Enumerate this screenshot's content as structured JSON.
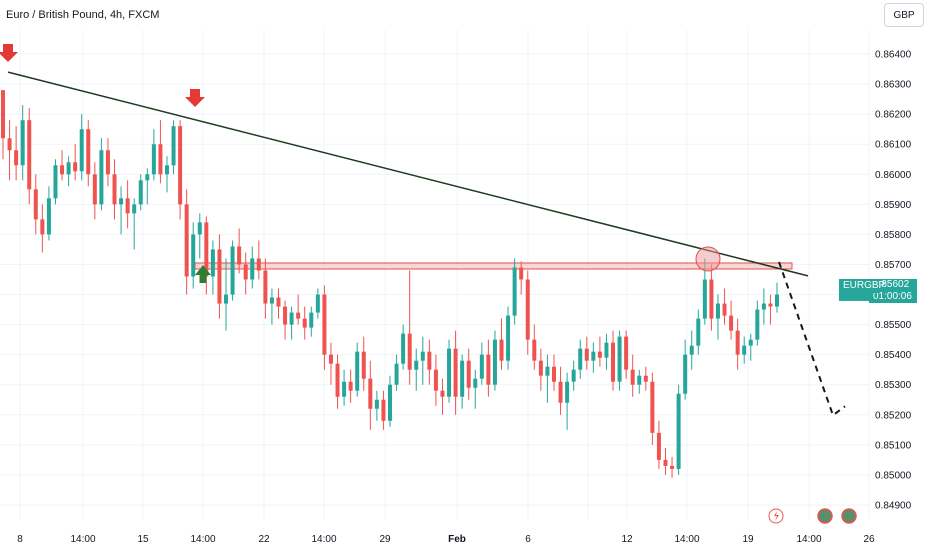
{
  "header": {
    "title": "Euro / British Pound, 4h, FXCM"
  },
  "toolbar": {
    "currency_label": "GBP"
  },
  "last_price": {
    "symbol": "EURGBP",
    "price": "0.85602",
    "countdown": "01:00:06"
  },
  "colors": {
    "up": "#26a69a",
    "down": "#ef5350",
    "trendline": "#1e3a1e",
    "zone_fill": "#f4c7c3",
    "zone_stroke": "#e05050",
    "arrow_red": "#e53935",
    "arrow_green": "#2e7d32"
  },
  "chart_data": {
    "type": "candlestick",
    "title": "Euro / British Pound, 4h, FXCM",
    "y_ticks": [
      "0.86400",
      "0.86300",
      "0.86200",
      "0.86100",
      "0.86000",
      "0.85900",
      "0.85800",
      "0.85700",
      "0.85600",
      "0.85500",
      "0.85400",
      "0.85300",
      "0.85200",
      "0.85100",
      "0.85000",
      "0.84900"
    ],
    "ylim": [
      0.8485,
      0.8648
    ],
    "x_ticks": [
      "8",
      "14:00",
      "15",
      "14:00",
      "22",
      "14:00",
      "29",
      "Feb",
      "6",
      "14:00",
      "12",
      "14:00",
      "19",
      "14:00",
      "26"
    ],
    "x_ticks_bold": [
      "Feb"
    ],
    "resistance_zone": [
      0.85685,
      0.85705
    ],
    "trendline": {
      "start_price": 0.8634,
      "end_price": 0.85662
    },
    "projection": {
      "to_price": 0.85215
    },
    "series": [
      {
        "values": [
          [
            0.8628,
            0.8628,
            0.8605,
            0.8612
          ],
          [
            0.8612,
            0.8618,
            0.8598,
            0.8608
          ],
          [
            0.8608,
            0.8616,
            0.8598,
            0.8603
          ],
          [
            0.8603,
            0.8623,
            0.8598,
            0.8618
          ],
          [
            0.8618,
            0.8622,
            0.859,
            0.8595
          ],
          [
            0.8595,
            0.86,
            0.858,
            0.8585
          ],
          [
            0.8585,
            0.859,
            0.8574,
            0.858
          ],
          [
            0.858,
            0.8596,
            0.8578,
            0.8592
          ],
          [
            0.8592,
            0.8605,
            0.859,
            0.8603
          ],
          [
            0.8603,
            0.8608,
            0.8598,
            0.86
          ],
          [
            0.86,
            0.8606,
            0.8596,
            0.8604
          ],
          [
            0.8604,
            0.861,
            0.8598,
            0.8601
          ],
          [
            0.8601,
            0.862,
            0.8598,
            0.8615
          ],
          [
            0.8615,
            0.8618,
            0.8596,
            0.86
          ],
          [
            0.86,
            0.8604,
            0.8585,
            0.859
          ],
          [
            0.859,
            0.8612,
            0.8588,
            0.8608
          ],
          [
            0.8608,
            0.8612,
            0.8596,
            0.86
          ],
          [
            0.86,
            0.8605,
            0.8585,
            0.859
          ],
          [
            0.859,
            0.8596,
            0.858,
            0.8592
          ],
          [
            0.8592,
            0.8598,
            0.8582,
            0.8587
          ],
          [
            0.8587,
            0.8592,
            0.8575,
            0.859
          ],
          [
            0.859,
            0.86,
            0.8588,
            0.8598
          ],
          [
            0.8598,
            0.8602,
            0.859,
            0.86
          ],
          [
            0.86,
            0.8615,
            0.8598,
            0.861
          ],
          [
            0.861,
            0.8618,
            0.8597,
            0.86
          ],
          [
            0.86,
            0.8606,
            0.8594,
            0.8603
          ],
          [
            0.8603,
            0.8618,
            0.86,
            0.8616
          ],
          [
            0.8616,
            0.8618,
            0.8585,
            0.859
          ],
          [
            0.859,
            0.8595,
            0.856,
            0.8566
          ],
          [
            0.8566,
            0.8584,
            0.8562,
            0.858
          ],
          [
            0.858,
            0.8587,
            0.8572,
            0.8584
          ],
          [
            0.8584,
            0.8586,
            0.856,
            0.8566
          ],
          [
            0.8566,
            0.8578,
            0.856,
            0.8575
          ],
          [
            0.8575,
            0.858,
            0.8552,
            0.8557
          ],
          [
            0.8557,
            0.8572,
            0.8548,
            0.856
          ],
          [
            0.856,
            0.8578,
            0.8558,
            0.8576
          ],
          [
            0.8576,
            0.8582,
            0.8567,
            0.857
          ],
          [
            0.857,
            0.8574,
            0.856,
            0.8565
          ],
          [
            0.8565,
            0.8576,
            0.8562,
            0.8572
          ],
          [
            0.8572,
            0.8578,
            0.8565,
            0.8568
          ],
          [
            0.8568,
            0.8572,
            0.8552,
            0.8557
          ],
          [
            0.8557,
            0.8562,
            0.855,
            0.8559
          ],
          [
            0.8559,
            0.8562,
            0.8552,
            0.8556
          ],
          [
            0.8556,
            0.8558,
            0.8545,
            0.855
          ],
          [
            0.855,
            0.8556,
            0.8545,
            0.8554
          ],
          [
            0.8554,
            0.856,
            0.855,
            0.8552
          ],
          [
            0.8552,
            0.8556,
            0.8545,
            0.8549
          ],
          [
            0.8549,
            0.8556,
            0.8546,
            0.8554
          ],
          [
            0.8554,
            0.8562,
            0.8552,
            0.856
          ],
          [
            0.856,
            0.8563,
            0.8535,
            0.854
          ],
          [
            0.854,
            0.8544,
            0.853,
            0.8537
          ],
          [
            0.8537,
            0.854,
            0.8522,
            0.8526
          ],
          [
            0.8526,
            0.8535,
            0.8523,
            0.8531
          ],
          [
            0.8531,
            0.8535,
            0.8524,
            0.8528
          ],
          [
            0.8528,
            0.8544,
            0.8526,
            0.8541
          ],
          [
            0.8541,
            0.8546,
            0.8528,
            0.8532
          ],
          [
            0.8532,
            0.8538,
            0.8515,
            0.8522
          ],
          [
            0.8522,
            0.8528,
            0.8518,
            0.8525
          ],
          [
            0.8525,
            0.8528,
            0.8515,
            0.8518
          ],
          [
            0.8518,
            0.8533,
            0.8516,
            0.853
          ],
          [
            0.853,
            0.854,
            0.8528,
            0.8537
          ],
          [
            0.8537,
            0.855,
            0.8535,
            0.8547
          ],
          [
            0.8547,
            0.8568,
            0.853,
            0.8535
          ],
          [
            0.8535,
            0.8542,
            0.8528,
            0.8538
          ],
          [
            0.8538,
            0.8546,
            0.853,
            0.8541
          ],
          [
            0.8541,
            0.8545,
            0.853,
            0.8535
          ],
          [
            0.8535,
            0.854,
            0.8523,
            0.8528
          ],
          [
            0.8528,
            0.8532,
            0.852,
            0.8526
          ],
          [
            0.8526,
            0.8545,
            0.8524,
            0.8542
          ],
          [
            0.8542,
            0.8548,
            0.852,
            0.8526
          ],
          [
            0.8526,
            0.854,
            0.8522,
            0.8538
          ],
          [
            0.8538,
            0.8542,
            0.8525,
            0.8529
          ],
          [
            0.8529,
            0.8535,
            0.8522,
            0.8532
          ],
          [
            0.8532,
            0.8544,
            0.853,
            0.854
          ],
          [
            0.854,
            0.8545,
            0.8526,
            0.853
          ],
          [
            0.853,
            0.8548,
            0.8528,
            0.8545
          ],
          [
            0.8545,
            0.8552,
            0.8535,
            0.8538
          ],
          [
            0.8538,
            0.8556,
            0.8535,
            0.8553
          ],
          [
            0.8553,
            0.8572,
            0.855,
            0.8569
          ],
          [
            0.8569,
            0.8571,
            0.856,
            0.8565
          ],
          [
            0.8565,
            0.8568,
            0.854,
            0.8545
          ],
          [
            0.8545,
            0.855,
            0.8535,
            0.8538
          ],
          [
            0.8538,
            0.8542,
            0.8528,
            0.8533
          ],
          [
            0.8533,
            0.854,
            0.8524,
            0.8536
          ],
          [
            0.8536,
            0.854,
            0.8528,
            0.8531
          ],
          [
            0.8531,
            0.8536,
            0.852,
            0.8524
          ],
          [
            0.8524,
            0.8534,
            0.8515,
            0.8531
          ],
          [
            0.8531,
            0.8538,
            0.8528,
            0.8535
          ],
          [
            0.8535,
            0.8545,
            0.8532,
            0.8542
          ],
          [
            0.8542,
            0.8546,
            0.8535,
            0.8538
          ],
          [
            0.8538,
            0.8544,
            0.8534,
            0.8541
          ],
          [
            0.8541,
            0.8546,
            0.8536,
            0.8539
          ],
          [
            0.8539,
            0.8547,
            0.8535,
            0.8544
          ],
          [
            0.8544,
            0.8548,
            0.8528,
            0.8531
          ],
          [
            0.8531,
            0.8548,
            0.8528,
            0.8546
          ],
          [
            0.8546,
            0.8548,
            0.8532,
            0.8535
          ],
          [
            0.8535,
            0.854,
            0.8526,
            0.853
          ],
          [
            0.853,
            0.8535,
            0.8527,
            0.8533
          ],
          [
            0.8533,
            0.8536,
            0.8528,
            0.8531
          ],
          [
            0.8531,
            0.8534,
            0.851,
            0.8514
          ],
          [
            0.8514,
            0.8518,
            0.8502,
            0.8505
          ],
          [
            0.8505,
            0.8509,
            0.85,
            0.8503
          ],
          [
            0.8503,
            0.8506,
            0.8499,
            0.8502
          ],
          [
            0.8502,
            0.853,
            0.85,
            0.8527
          ],
          [
            0.8527,
            0.8545,
            0.8525,
            0.854
          ],
          [
            0.854,
            0.8548,
            0.8535,
            0.8543
          ],
          [
            0.8543,
            0.8555,
            0.854,
            0.8552
          ],
          [
            0.8552,
            0.8572,
            0.855,
            0.8565
          ],
          [
            0.8565,
            0.857,
            0.8548,
            0.8552
          ],
          [
            0.8552,
            0.856,
            0.8545,
            0.8557
          ],
          [
            0.8557,
            0.8562,
            0.855,
            0.8553
          ],
          [
            0.8553,
            0.8558,
            0.8545,
            0.8548
          ],
          [
            0.8548,
            0.8552,
            0.8535,
            0.854
          ],
          [
            0.854,
            0.8546,
            0.8537,
            0.8543
          ],
          [
            0.8543,
            0.8547,
            0.8538,
            0.8545
          ],
          [
            0.8545,
            0.8558,
            0.8543,
            0.8555
          ],
          [
            0.8555,
            0.8562,
            0.855,
            0.8557
          ],
          [
            0.8557,
            0.856,
            0.855,
            0.8556
          ],
          [
            0.8556,
            0.8564,
            0.8554,
            0.856
          ]
        ]
      }
    ]
  }
}
